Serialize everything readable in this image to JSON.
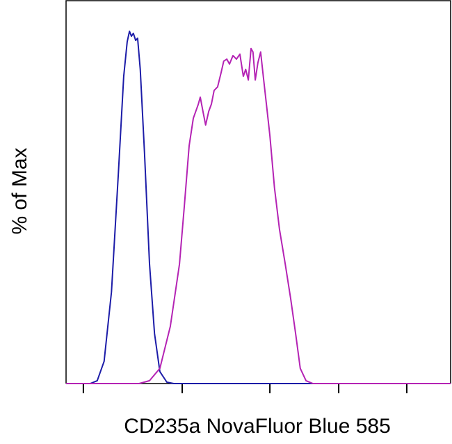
{
  "chart_data": {
    "type": "line",
    "x_label": "CD235a NovaFluor Blue 585",
    "y_label": "% of Max",
    "xlim": [
      0,
      1000
    ],
    "ylim": [
      0,
      100
    ],
    "xticks": [
      45,
      302,
      530,
      709,
      886
    ],
    "series": [
      {
        "color": "#1c1ca8",
        "x": [
          0,
          63,
          81,
          99,
          118,
          136,
          150,
          159,
          165,
          170,
          175,
          181,
          186,
          193,
          204,
          217,
          230,
          244,
          262,
          280,
          1000
        ],
        "values": [
          0,
          0,
          0.8,
          6.3,
          26,
          59.6,
          87.2,
          97,
          100,
          98.6,
          99.4,
          97.4,
          98,
          89.2,
          65.5,
          34,
          14.2,
          3.4,
          0.4,
          0,
          0
        ]
      },
      {
        "color": "#b423b4",
        "x": [
          0,
          190,
          217,
          244,
          271,
          295,
          307,
          320,
          331,
          344,
          349,
          356,
          363,
          371,
          378,
          385,
          394,
          403,
          410,
          418,
          425,
          434,
          443,
          452,
          461,
          467,
          474,
          481,
          486,
          492,
          499,
          506,
          514,
          521,
          530,
          542,
          555,
          570,
          584,
          597,
          609,
          624,
          642,
          1000
        ],
        "values": [
          0,
          0,
          0.8,
          4.3,
          16.2,
          33.9,
          49.7,
          67.5,
          75.3,
          79.3,
          81.3,
          77.2,
          73.4,
          77.3,
          79.3,
          83.2,
          84.2,
          88.2,
          91.5,
          92.1,
          90.7,
          93.1,
          92.1,
          93.5,
          87.2,
          89.2,
          86.2,
          95.1,
          94.1,
          86.2,
          91.1,
          94.1,
          86.2,
          79.3,
          70.4,
          55.6,
          43.8,
          33.9,
          24.1,
          14.2,
          4.3,
          0.8,
          0,
          0
        ]
      }
    ]
  }
}
